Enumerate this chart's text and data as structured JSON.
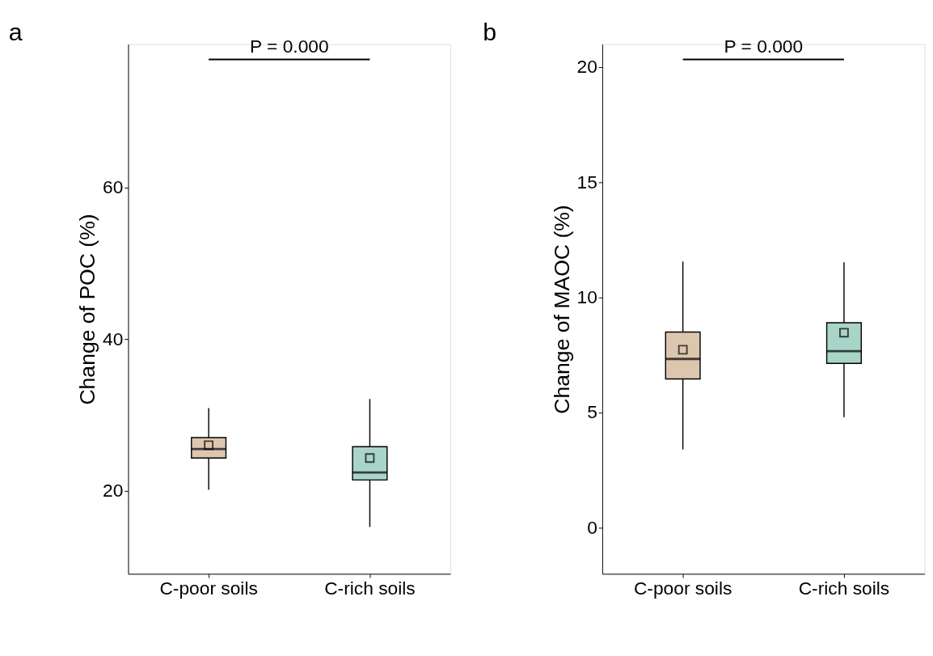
{
  "chart_data": [
    {
      "type": "box",
      "title": "a",
      "ylabel": "Change of POC (%)",
      "categories": [
        "C-poor soils",
        "C-rich soils"
      ],
      "colors": [
        "#dcc6ae",
        "#a9d4c8"
      ],
      "boxes": [
        {
          "low": 20.1,
          "q1": 24.3,
          "median": 25.5,
          "q3": 27.0,
          "high": 30.9,
          "mean": 26.0
        },
        {
          "low": 15.2,
          "q1": 21.4,
          "median": 22.4,
          "q3": 25.8,
          "high": 32.1,
          "mean": 24.3
        }
      ],
      "ylim": [
        9,
        79
      ],
      "yticks": [
        20,
        40,
        60
      ],
      "grid": false,
      "marker": "square",
      "annotations": [
        "P = 0.000"
      ]
    },
    {
      "type": "box",
      "title": "b",
      "ylabel": "Change of MAOC (%)",
      "categories": [
        "C-poor soils",
        "C-rich soils"
      ],
      "colors": [
        "#dcc6ae",
        "#a9d4c8"
      ],
      "boxes": [
        {
          "low": 3.4,
          "q1": 6.46,
          "median": 7.33,
          "q3": 8.5,
          "high": 11.56,
          "mean": 7.73
        },
        {
          "low": 4.8,
          "q1": 7.14,
          "median": 7.67,
          "q3": 8.9,
          "high": 11.53,
          "mean": 8.47
        }
      ],
      "ylim": [
        -2,
        21
      ],
      "yticks": [
        0,
        5,
        10,
        15,
        20
      ],
      "grid": false,
      "marker": "square",
      "annotations": [
        "P = 0.000"
      ]
    }
  ]
}
